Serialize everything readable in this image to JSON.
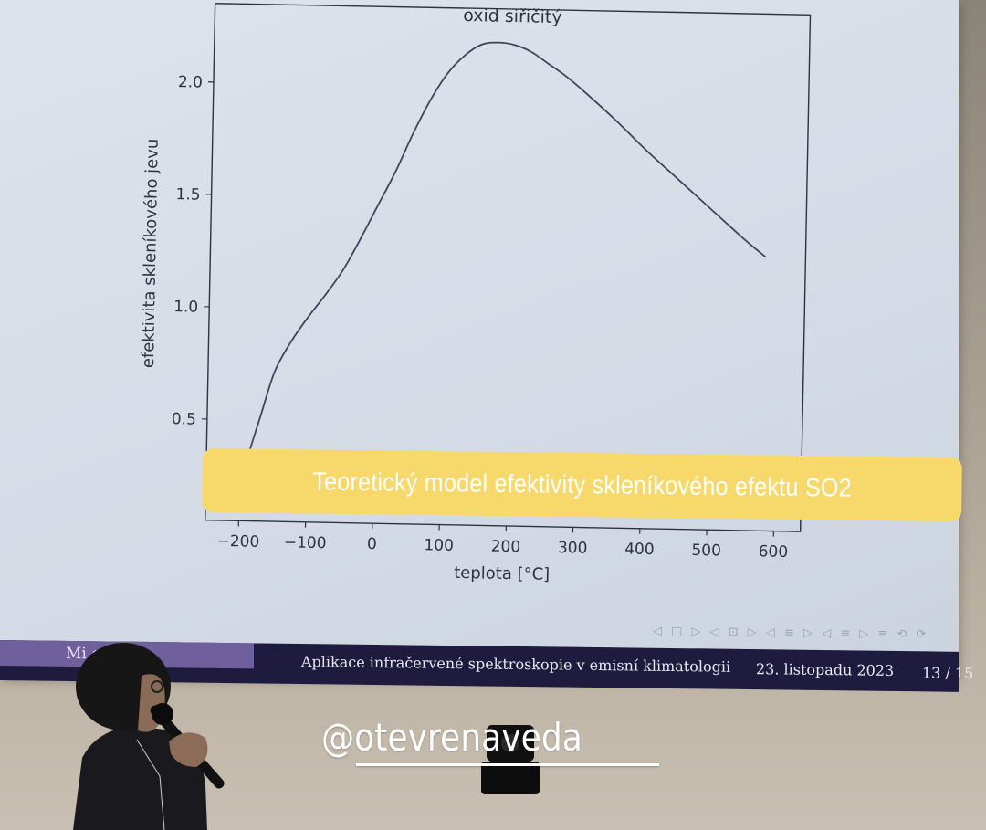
{
  "chart_data": {
    "type": "line",
    "title": "oxid siřičitý",
    "xlabel": "teplota [°C]",
    "ylabel": "efektivita skleníkového jevu",
    "xlim": [
      -250,
      640
    ],
    "ylim": [
      0.05,
      2.35
    ],
    "xticks": [
      -200,
      -100,
      0,
      100,
      200,
      300,
      400,
      500,
      600
    ],
    "xtick_labels": [
      "−200",
      "−100",
      "0",
      "100",
      "200",
      "300",
      "400",
      "500",
      "600"
    ],
    "yticks": [
      0.5,
      1.0,
      1.5,
      2.0
    ],
    "ytick_labels": [
      "0.5",
      "1.0",
      "1.5",
      "2.0"
    ],
    "grid": false,
    "series": [
      {
        "color": "#3d4557",
        "x": [
          -185,
          -170,
          -150,
          -125,
          -100,
          -75,
          -50,
          -25,
          0,
          25,
          50,
          75,
          100,
          125,
          150,
          175,
          200,
          225,
          250,
          275,
          300,
          350,
          400,
          450,
          500,
          550,
          580
        ],
        "y": [
          0.37,
          0.52,
          0.72,
          0.86,
          0.97,
          1.07,
          1.18,
          1.32,
          1.47,
          1.62,
          1.79,
          1.94,
          2.06,
          2.14,
          2.19,
          2.2,
          2.19,
          2.16,
          2.11,
          2.06,
          2.0,
          1.87,
          1.73,
          1.6,
          1.47,
          1.34,
          1.27
        ]
      }
    ]
  },
  "caption": "Teoretický model efektivity skleníkového efektu SO2",
  "slide_nav_symbols": "◁ □ ▷ ◁ ⊡ ▷ ◁ ≡ ▷ ◁ ≡ ▷ ≡ ⟲ ⟳",
  "footer": {
    "author": "Mi          off",
    "talk_title": "Aplikace infračervené spektroskopie v emisní klimatologii",
    "date": "23. listopadu 2023",
    "page": "13 / 15"
  },
  "watermark": "@otevrenaveda",
  "colors": {
    "caption_band": "#f6d96a",
    "footer_bar": "#1f1b3f",
    "footer_author_bg": "#6f5f9c",
    "slide_bg": "#d8dee8"
  }
}
